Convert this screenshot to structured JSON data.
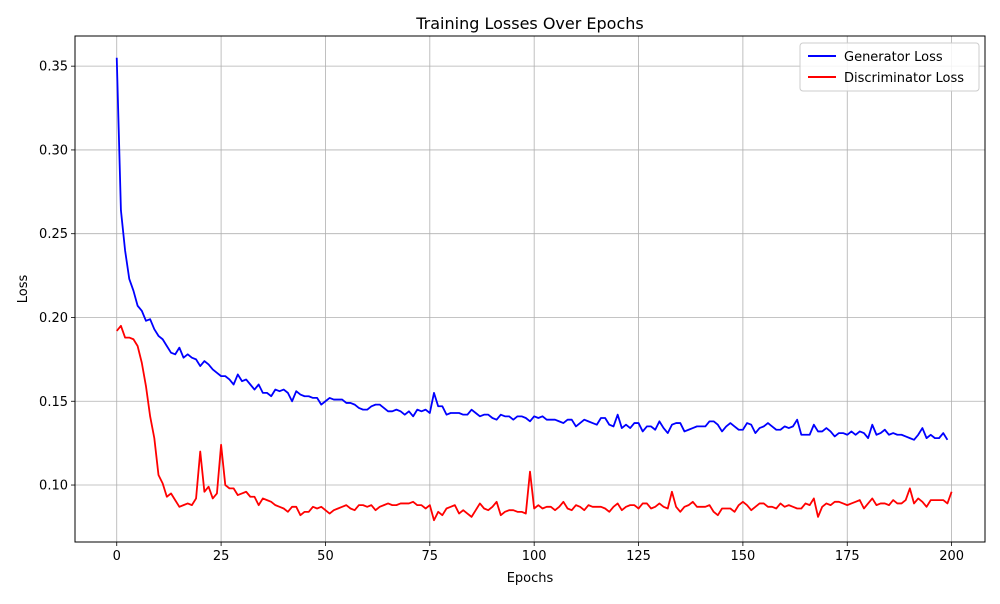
{
  "chart_data": {
    "type": "line",
    "title": "Training Losses Over Epochs",
    "xlabel": "Epochs",
    "ylabel": "Loss",
    "xlim": [
      -10,
      208
    ],
    "ylim": [
      0.066,
      0.368
    ],
    "xticks": [
      0,
      25,
      50,
      75,
      100,
      125,
      150,
      175,
      200
    ],
    "xtick_labels": [
      "0",
      "25",
      "50",
      "75",
      "100",
      "125",
      "150",
      "175",
      "200"
    ],
    "yticks": [
      0.1,
      0.15,
      0.2,
      0.25,
      0.3,
      0.35
    ],
    "ytick_labels": [
      "0.10",
      "0.15",
      "0.20",
      "0.25",
      "0.30",
      "0.35"
    ],
    "grid": true,
    "legend_position": "top-right",
    "series": [
      {
        "name": "Generator Loss",
        "color": "#0000ff",
        "values": [
          0.355,
          0.264,
          0.24,
          0.223,
          0.216,
          0.207,
          0.204,
          0.198,
          0.199,
          0.193,
          0.189,
          0.187,
          0.183,
          0.179,
          0.178,
          0.182,
          0.176,
          0.178,
          0.176,
          0.175,
          0.171,
          0.174,
          0.172,
          0.169,
          0.167,
          0.165,
          0.165,
          0.163,
          0.16,
          0.166,
          0.162,
          0.163,
          0.16,
          0.157,
          0.16,
          0.155,
          0.155,
          0.153,
          0.157,
          0.156,
          0.157,
          0.155,
          0.15,
          0.156,
          0.154,
          0.153,
          0.153,
          0.152,
          0.152,
          0.148,
          0.15,
          0.152,
          0.151,
          0.151,
          0.151,
          0.149,
          0.149,
          0.148,
          0.146,
          0.145,
          0.145,
          0.147,
          0.148,
          0.148,
          0.146,
          0.144,
          0.144,
          0.145,
          0.144,
          0.142,
          0.144,
          0.141,
          0.145,
          0.144,
          0.145,
          0.143,
          0.155,
          0.147,
          0.147,
          0.142,
          0.143,
          0.143,
          0.143,
          0.142,
          0.142,
          0.145,
          0.143,
          0.141,
          0.142,
          0.142,
          0.14,
          0.139,
          0.142,
          0.141,
          0.141,
          0.139,
          0.141,
          0.141,
          0.14,
          0.138,
          0.141,
          0.14,
          0.141,
          0.139,
          0.139,
          0.139,
          0.138,
          0.137,
          0.139,
          0.139,
          0.135,
          0.137,
          0.139,
          0.138,
          0.137,
          0.136,
          0.14,
          0.14,
          0.136,
          0.135,
          0.142,
          0.134,
          0.136,
          0.134,
          0.137,
          0.137,
          0.132,
          0.135,
          0.135,
          0.133,
          0.138,
          0.134,
          0.131,
          0.136,
          0.137,
          0.137,
          0.132,
          0.133,
          0.134,
          0.135,
          0.135,
          0.135,
          0.138,
          0.138,
          0.136,
          0.132,
          0.135,
          0.137,
          0.135,
          0.133,
          0.133,
          0.137,
          0.136,
          0.131,
          0.134,
          0.135,
          0.137,
          0.135,
          0.133,
          0.133,
          0.135,
          0.134,
          0.135,
          0.139,
          0.13,
          0.13,
          0.13,
          0.136,
          0.132,
          0.132,
          0.134,
          0.132,
          0.129,
          0.131,
          0.131,
          0.13,
          0.132,
          0.13,
          0.132,
          0.131,
          0.128,
          0.136,
          0.13,
          0.131,
          0.133,
          0.13,
          0.131,
          0.13,
          0.13,
          0.129,
          0.128,
          0.127,
          0.13,
          0.134,
          0.128,
          0.13,
          0.128,
          0.128,
          0.131,
          0.127
        ]
      },
      {
        "name": "Discriminator Loss",
        "color": "#ff0000",
        "values": [
          0.192,
          0.195,
          0.188,
          0.188,
          0.187,
          0.183,
          0.173,
          0.159,
          0.141,
          0.128,
          0.106,
          0.101,
          0.093,
          0.095,
          0.091,
          0.087,
          0.088,
          0.089,
          0.088,
          0.092,
          0.12,
          0.096,
          0.099,
          0.092,
          0.095,
          0.124,
          0.1,
          0.098,
          0.098,
          0.094,
          0.095,
          0.096,
          0.093,
          0.093,
          0.088,
          0.092,
          0.091,
          0.09,
          0.088,
          0.087,
          0.086,
          0.084,
          0.087,
          0.087,
          0.082,
          0.084,
          0.084,
          0.087,
          0.086,
          0.087,
          0.085,
          0.083,
          0.085,
          0.086,
          0.087,
          0.088,
          0.086,
          0.085,
          0.088,
          0.088,
          0.087,
          0.088,
          0.085,
          0.087,
          0.088,
          0.089,
          0.088,
          0.088,
          0.089,
          0.089,
          0.089,
          0.09,
          0.088,
          0.088,
          0.086,
          0.088,
          0.079,
          0.084,
          0.082,
          0.086,
          0.087,
          0.088,
          0.083,
          0.085,
          0.083,
          0.081,
          0.085,
          0.089,
          0.086,
          0.085,
          0.087,
          0.09,
          0.082,
          0.084,
          0.085,
          0.085,
          0.084,
          0.084,
          0.083,
          0.108,
          0.086,
          0.088,
          0.086,
          0.087,
          0.087,
          0.085,
          0.087,
          0.09,
          0.086,
          0.085,
          0.088,
          0.087,
          0.085,
          0.088,
          0.087,
          0.087,
          0.087,
          0.086,
          0.084,
          0.087,
          0.089,
          0.085,
          0.087,
          0.088,
          0.088,
          0.086,
          0.089,
          0.089,
          0.086,
          0.087,
          0.089,
          0.087,
          0.086,
          0.096,
          0.087,
          0.084,
          0.087,
          0.088,
          0.09,
          0.087,
          0.087,
          0.087,
          0.088,
          0.084,
          0.082,
          0.086,
          0.086,
          0.086,
          0.084,
          0.088,
          0.09,
          0.088,
          0.085,
          0.087,
          0.089,
          0.089,
          0.087,
          0.087,
          0.086,
          0.089,
          0.087,
          0.088,
          0.087,
          0.086,
          0.086,
          0.089,
          0.088,
          0.092,
          0.081,
          0.087,
          0.089,
          0.088,
          0.09,
          0.09,
          0.089,
          0.088,
          0.089,
          0.09,
          0.091,
          0.086,
          0.089,
          0.092,
          0.088,
          0.089,
          0.089,
          0.088,
          0.091,
          0.089,
          0.089,
          0.091,
          0.098,
          0.089,
          0.092,
          0.09,
          0.087,
          0.091,
          0.091,
          0.091,
          0.091,
          0.089,
          0.096
        ]
      }
    ]
  }
}
